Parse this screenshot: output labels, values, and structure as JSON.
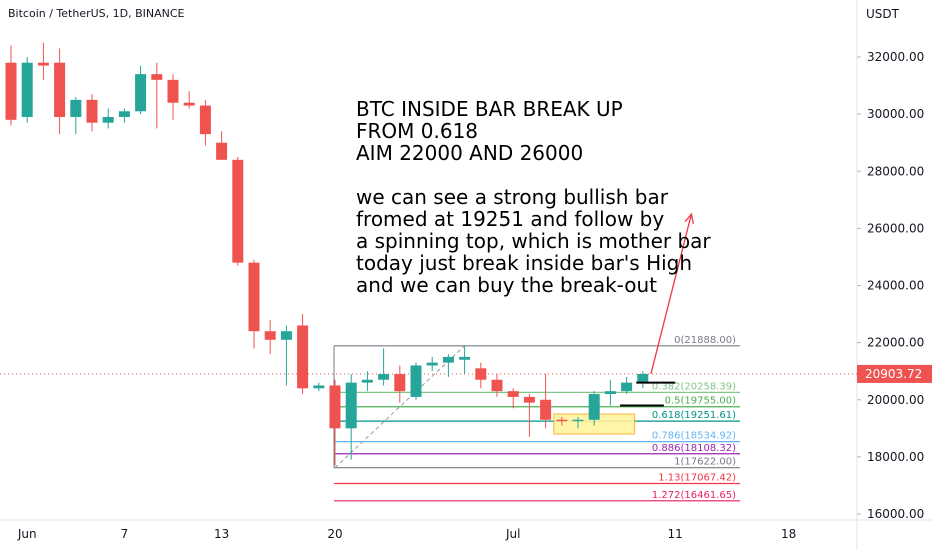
{
  "header": {
    "pair_title": "Bitcoin / TetherUS, 1D, BINANCE",
    "axis_unit": "USDT"
  },
  "annotation": {
    "headline": [
      "BTC INSIDE BAR BREAK UP",
      "FROM 0.618",
      "AIM 22000 AND 26000"
    ],
    "body": [
      "we can see a strong bullish bar",
      "fromed at 19251 and follow by",
      "a spinning top, which is mother bar",
      "today just break inside bar's High",
      "and we can buy the break-out"
    ]
  },
  "colors": {
    "up": "#26a69a",
    "down": "#ef5350",
    "last_price_bg": "#ef5350",
    "highlight_box": "#fff59d",
    "projection_arrow": "#f23645"
  },
  "chart_data": {
    "type": "candlestick",
    "symbol": "Bitcoin / TetherUS",
    "interval": "1D",
    "exchange": "BINANCE",
    "ylim": [
      16000,
      33000
    ],
    "yticks": [
      16000,
      18000,
      20000,
      22000,
      24000,
      26000,
      28000,
      30000,
      32000
    ],
    "ytick_labels": [
      "16000.00",
      "18000.00",
      "20000.00",
      "22000.00",
      "24000.00",
      "26000.00",
      "28000.00",
      "30000.00",
      "32000.00"
    ],
    "xtick_labels": [
      {
        "label": "Jun",
        "day": 1
      },
      {
        "label": "7",
        "day": 7
      },
      {
        "label": "13",
        "day": 13
      },
      {
        "label": "20",
        "day": 20
      },
      {
        "label": "Jul",
        "day": 31
      },
      {
        "label": "11",
        "day": 41
      },
      {
        "label": "18",
        "day": 48
      }
    ],
    "last_price": 20903.72,
    "last_price_label": "20903.72",
    "candles": [
      {
        "day": 0,
        "o": 31800,
        "h": 32400,
        "l": 29600,
        "c": 29800
      },
      {
        "day": 1,
        "o": 29900,
        "h": 32000,
        "l": 29700,
        "c": 31800
      },
      {
        "day": 2,
        "o": 31800,
        "h": 32500,
        "l": 31200,
        "c": 31700
      },
      {
        "day": 3,
        "o": 31800,
        "h": 32300,
        "l": 29300,
        "c": 29900
      },
      {
        "day": 4,
        "o": 29900,
        "h": 30600,
        "l": 29300,
        "c": 30500
      },
      {
        "day": 5,
        "o": 30500,
        "h": 30700,
        "l": 29400,
        "c": 29700
      },
      {
        "day": 6,
        "o": 29700,
        "h": 30200,
        "l": 29500,
        "c": 29900
      },
      {
        "day": 7,
        "o": 29900,
        "h": 30200,
        "l": 29700,
        "c": 30100
      },
      {
        "day": 8,
        "o": 30100,
        "h": 31700,
        "l": 30000,
        "c": 31400
      },
      {
        "day": 9,
        "o": 31400,
        "h": 31800,
        "l": 29500,
        "c": 31200
      },
      {
        "day": 10,
        "o": 31200,
        "h": 31400,
        "l": 29800,
        "c": 30400
      },
      {
        "day": 11,
        "o": 30400,
        "h": 30800,
        "l": 30200,
        "c": 30300
      },
      {
        "day": 12,
        "o": 30300,
        "h": 30500,
        "l": 28900,
        "c": 29300
      },
      {
        "day": 13,
        "o": 29000,
        "h": 29400,
        "l": 28400,
        "c": 28400
      },
      {
        "day": 14,
        "o": 28400,
        "h": 28500,
        "l": 24700,
        "c": 24800
      },
      {
        "day": 15,
        "o": 24800,
        "h": 24900,
        "l": 21800,
        "c": 22400
      },
      {
        "day": 16,
        "o": 22400,
        "h": 22800,
        "l": 21600,
        "c": 22100
      },
      {
        "day": 17,
        "o": 22100,
        "h": 22600,
        "l": 20500,
        "c": 22400
      },
      {
        "day": 18,
        "o": 22600,
        "h": 23000,
        "l": 20200,
        "c": 20400
      },
      {
        "day": 19,
        "o": 20400,
        "h": 20600,
        "l": 20300,
        "c": 20500
      },
      {
        "day": 20,
        "o": 20500,
        "h": 20700,
        "l": 17700,
        "c": 19000
      },
      {
        "day": 21,
        "o": 19000,
        "h": 20900,
        "l": 17900,
        "c": 20600
      },
      {
        "day": 22,
        "o": 20600,
        "h": 21000,
        "l": 20300,
        "c": 20700
      },
      {
        "day": 23,
        "o": 20700,
        "h": 21800,
        "l": 20500,
        "c": 20900
      },
      {
        "day": 24,
        "o": 20900,
        "h": 21200,
        "l": 19900,
        "c": 20300
      },
      {
        "day": 25,
        "o": 20100,
        "h": 21300,
        "l": 20000,
        "c": 21200
      },
      {
        "day": 26,
        "o": 21200,
        "h": 21500,
        "l": 21000,
        "c": 21300
      },
      {
        "day": 27,
        "o": 21300,
        "h": 21600,
        "l": 20800,
        "c": 21500
      },
      {
        "day": 28,
        "o": 21400,
        "h": 21900,
        "l": 20900,
        "c": 21500
      },
      {
        "day": 29,
        "o": 21100,
        "h": 21300,
        "l": 20400,
        "c": 20700
      },
      {
        "day": 30,
        "o": 20700,
        "h": 20900,
        "l": 20100,
        "c": 20300
      },
      {
        "day": 31,
        "o": 20300,
        "h": 20400,
        "l": 19700,
        "c": 20100
      },
      {
        "day": 32,
        "o": 20100,
        "h": 20200,
        "l": 18700,
        "c": 19900
      },
      {
        "day": 33,
        "o": 20000,
        "h": 20900,
        "l": 19000,
        "c": 19300
      },
      {
        "day": 34,
        "o": 19300,
        "h": 19400,
        "l": 19100,
        "c": 19250
      },
      {
        "day": 35,
        "o": 19250,
        "h": 19400,
        "l": 19000,
        "c": 19300
      },
      {
        "day": 36,
        "o": 19300,
        "h": 20300,
        "l": 19100,
        "c": 20200
      },
      {
        "day": 37,
        "o": 20200,
        "h": 20700,
        "l": 19800,
        "c": 20300
      },
      {
        "day": 38,
        "o": 20300,
        "h": 20800,
        "l": 20200,
        "c": 20600
      },
      {
        "day": 39,
        "o": 20600,
        "h": 21000,
        "l": 20400,
        "c": 20904
      }
    ],
    "fib_levels": [
      {
        "label": "0(21888.00)",
        "ratio": "0",
        "price": 21888.0,
        "color": "#787b86"
      },
      {
        "label": "0.382(20258.39)",
        "ratio": "0.382",
        "price": 20258.39,
        "color": "#81c784"
      },
      {
        "label": "0.5(19755.00)",
        "ratio": "0.5",
        "price": 19755.0,
        "color": "#4caf50"
      },
      {
        "label": "0.618(19251.61)",
        "ratio": "0.618",
        "price": 19251.61,
        "color": "#009688"
      },
      {
        "label": "0.786(18534.92)",
        "ratio": "0.786",
        "price": 18534.92,
        "color": "#64b5f6"
      },
      {
        "label": "0.886(18108.32)",
        "ratio": "0.886",
        "price": 18108.32,
        "color": "#9c27b0"
      },
      {
        "label": "1(17622.00)",
        "ratio": "1",
        "price": 17622.0,
        "color": "#787b86"
      },
      {
        "label": "1.13(17067.42)",
        "ratio": "1.13",
        "price": 17067.42,
        "color": "#f23645"
      },
      {
        "label": "1.272(16461.65)",
        "ratio": "1.272",
        "price": 16461.65,
        "color": "#e91e63"
      }
    ],
    "markup": {
      "fib_start_day": 20,
      "fib_end_day": 45,
      "trend_line": {
        "from": {
          "day": 20,
          "price": 17622
        },
        "to": {
          "day": 28,
          "price": 21888
        }
      },
      "highlight_box": {
        "from_day": 34,
        "to_day": 38,
        "top": 19500,
        "bottom": 18800
      },
      "inside_bar_high": {
        "from_day": 38.6,
        "to_day": 41,
        "price": 20600
      },
      "mother_bar_high": {
        "from_day": 37.6,
        "to_day": 40.3,
        "price": 19800
      },
      "projection": {
        "from": {
          "day": 39.5,
          "price": 20904
        },
        "to": {
          "day": 42,
          "price": 26500
        }
      }
    }
  }
}
